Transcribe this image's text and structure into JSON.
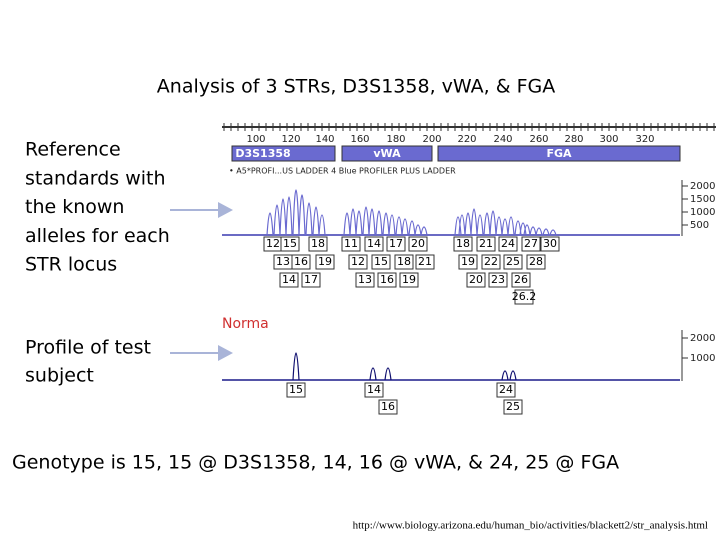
{
  "title": "Analysis of 3 STRs, D3S1358, vWA, & FGA",
  "reference_label": [
    "Reference",
    "standards with",
    "the known",
    "alleles for each",
    "STR locus"
  ],
  "profile_label": [
    "Profile of test",
    "subject"
  ],
  "figure": {
    "ruler_ticks": [
      "100",
      "120",
      "140",
      "160",
      "180",
      "200",
      "220",
      "240",
      "260",
      "280",
      "300",
      "320"
    ],
    "loci": [
      "D3S1358",
      "vWA",
      "FGA"
    ],
    "ladder_caption": "• A5*PROFI...US LADDER 4 Blue    PROFILER PLUS LADDER",
    "scale_top": [
      "2000",
      "1500",
      "1000",
      "500"
    ],
    "ladder_alleles": [
      [
        "12",
        "15",
        "18",
        "11",
        "14",
        "17",
        "20",
        "18",
        "21",
        "24",
        "27",
        "30"
      ],
      [
        "13",
        "16",
        "19",
        "12",
        "15",
        "18",
        "21",
        "19",
        "22",
        "25",
        "28"
      ],
      [
        "14",
        "17",
        "13",
        "16",
        "19",
        "20",
        "23",
        "26"
      ],
      [
        "26.2"
      ]
    ],
    "sample_label": "Norma",
    "scale_bottom": [
      "2000",
      "1000"
    ],
    "sample_alleles": [
      "15",
      "14",
      "16",
      "24",
      "25"
    ]
  },
  "genotype": "Genotype is 15, 15 @ D3S1358, 14, 16 @ vWA, & 24, 25 @ FGA",
  "source": "http://www.biology.arizona.edu/human_bio/activities/blackett2/str_analysis.html"
}
